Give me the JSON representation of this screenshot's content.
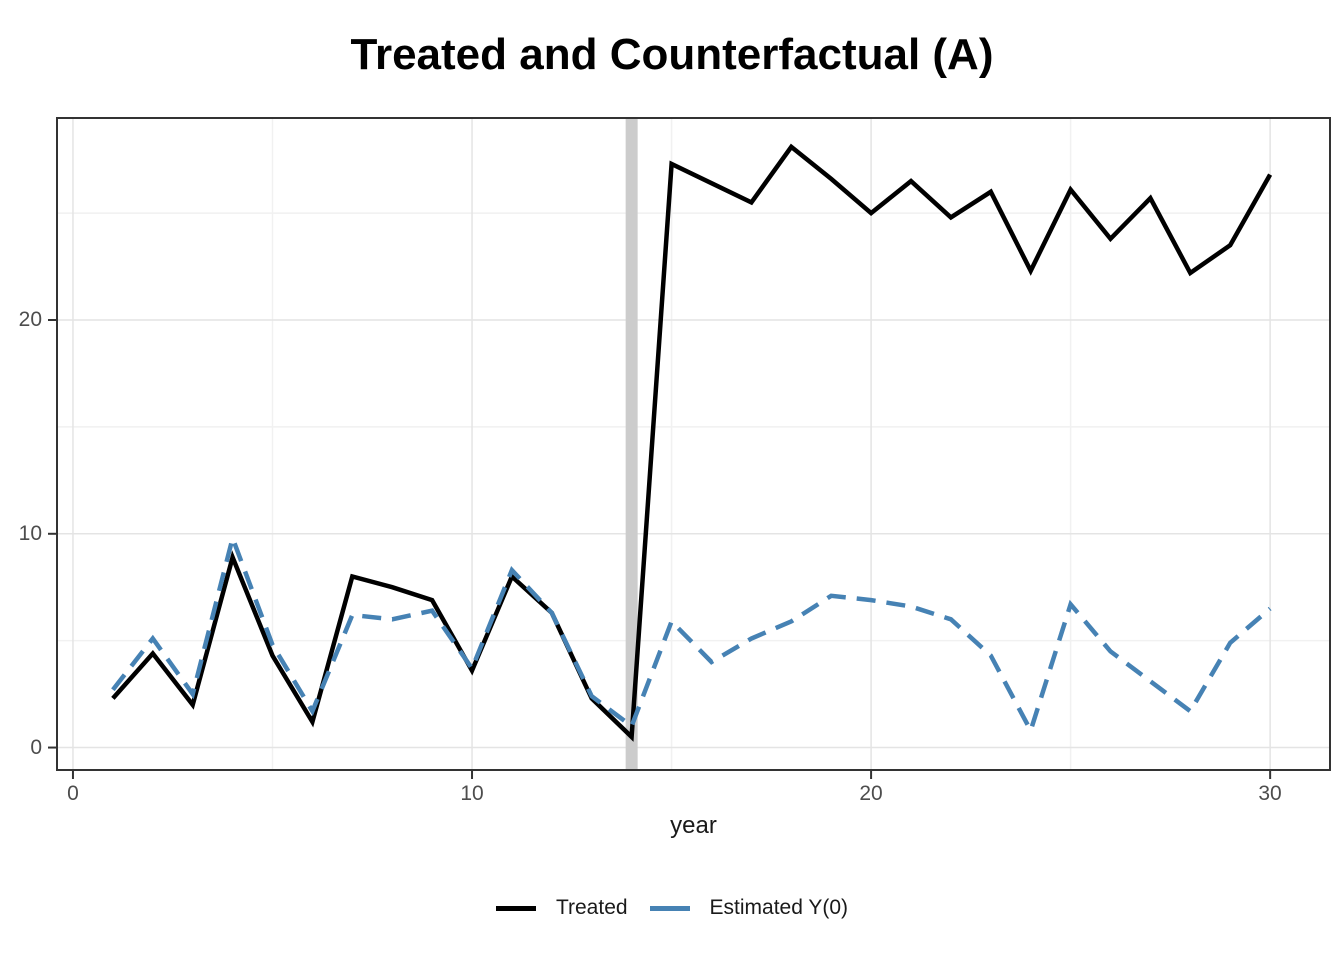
{
  "title": "Treated and Counterfactual (A)",
  "x_axis": {
    "label": "year",
    "tick_labels": [
      "0",
      "10",
      "20",
      "30"
    ]
  },
  "y_axis": {
    "tick_labels": [
      "0",
      "10",
      "20"
    ]
  },
  "legend": {
    "treated_label": "Treated",
    "estimated_label": "Estimated Y(0)"
  },
  "colors": {
    "treated": "#000000",
    "estimated": "#4682B4",
    "vline": "#CCCCCC",
    "grid_major": "#E4E4E4",
    "grid_minor": "#F1F1F1",
    "panel_border": "#333333",
    "tick_mark": "#333333",
    "tick_text": "#4D4D4D"
  },
  "chart_data": {
    "type": "line",
    "title": "Treated and Counterfactual (A)",
    "xlabel": "year",
    "ylabel": "",
    "x": [
      1,
      2,
      3,
      4,
      5,
      6,
      7,
      8,
      9,
      10,
      11,
      12,
      13,
      14,
      15,
      16,
      17,
      18,
      19,
      20,
      21,
      22,
      23,
      24,
      25,
      26,
      27,
      28,
      29,
      30
    ],
    "series": [
      {
        "name": "Treated",
        "color": "#000000",
        "style": "solid",
        "values": [
          2.3,
          4.4,
          2.0,
          8.9,
          4.3,
          1.2,
          8.0,
          7.5,
          6.9,
          3.6,
          8.0,
          6.3,
          2.3,
          0.5,
          27.3,
          26.4,
          25.5,
          28.1,
          26.6,
          25.0,
          26.5,
          24.8,
          26.0,
          22.3,
          26.1,
          23.8,
          25.7,
          22.2,
          23.5,
          26.8
        ]
      },
      {
        "name": "Estimated Y(0)",
        "color": "#4682B4",
        "style": "dashed",
        "values": [
          2.7,
          5.1,
          2.5,
          9.8,
          4.8,
          1.7,
          6.2,
          6.0,
          6.4,
          3.7,
          8.3,
          6.3,
          2.4,
          1.0,
          5.9,
          4.0,
          5.1,
          5.9,
          7.1,
          6.9,
          6.6,
          6.0,
          4.3,
          0.8,
          6.7,
          4.5,
          3.1,
          1.7,
          4.9,
          6.5
        ]
      }
    ],
    "vline_x": 14,
    "xlim": [
      -0.4,
      31.5
    ],
    "ylim": [
      -1.05,
      29.45
    ],
    "x_major_ticks": [
      0,
      10,
      20,
      30
    ],
    "x_minor_gridlines": [
      5,
      15,
      25
    ],
    "y_major_ticks": [
      0,
      10,
      20
    ],
    "y_minor_gridlines": [
      5,
      15,
      25
    ],
    "grid": true,
    "legend_position": "bottom"
  }
}
